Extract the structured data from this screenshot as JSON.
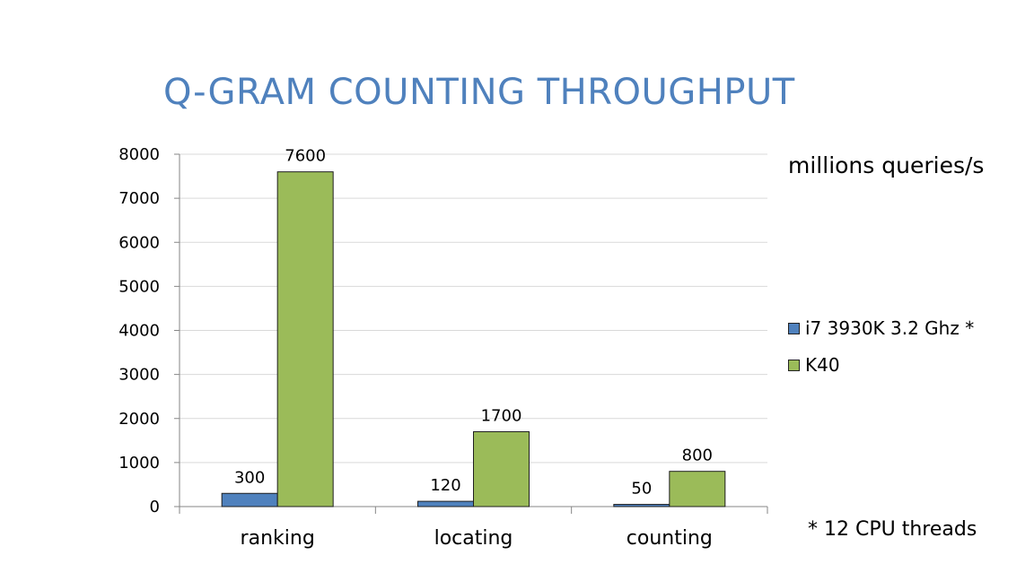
{
  "title": "Q-GRAM COUNTING THROUGHPUT",
  "unit_label": "millions queries/s",
  "footnote": "* 12 CPU threads",
  "colors": {
    "title": "#4f81bd",
    "series_i7": "#4f81bd",
    "series_k40": "#9bbb59"
  },
  "chart_data": {
    "type": "bar",
    "categories": [
      "ranking",
      "locating",
      "counting"
    ],
    "series": [
      {
        "name": "i7 3930K 3.2 Ghz *",
        "values": [
          300,
          120,
          50
        ],
        "color": "#4f81bd"
      },
      {
        "name": "K40",
        "values": [
          7600,
          1700,
          800
        ],
        "color": "#9bbb59"
      }
    ],
    "ylim": [
      0,
      8000
    ],
    "yticks": [
      0,
      1000,
      2000,
      3000,
      4000,
      5000,
      6000,
      7000,
      8000
    ],
    "grid": true,
    "data_labels": true,
    "legend_position": "right"
  }
}
